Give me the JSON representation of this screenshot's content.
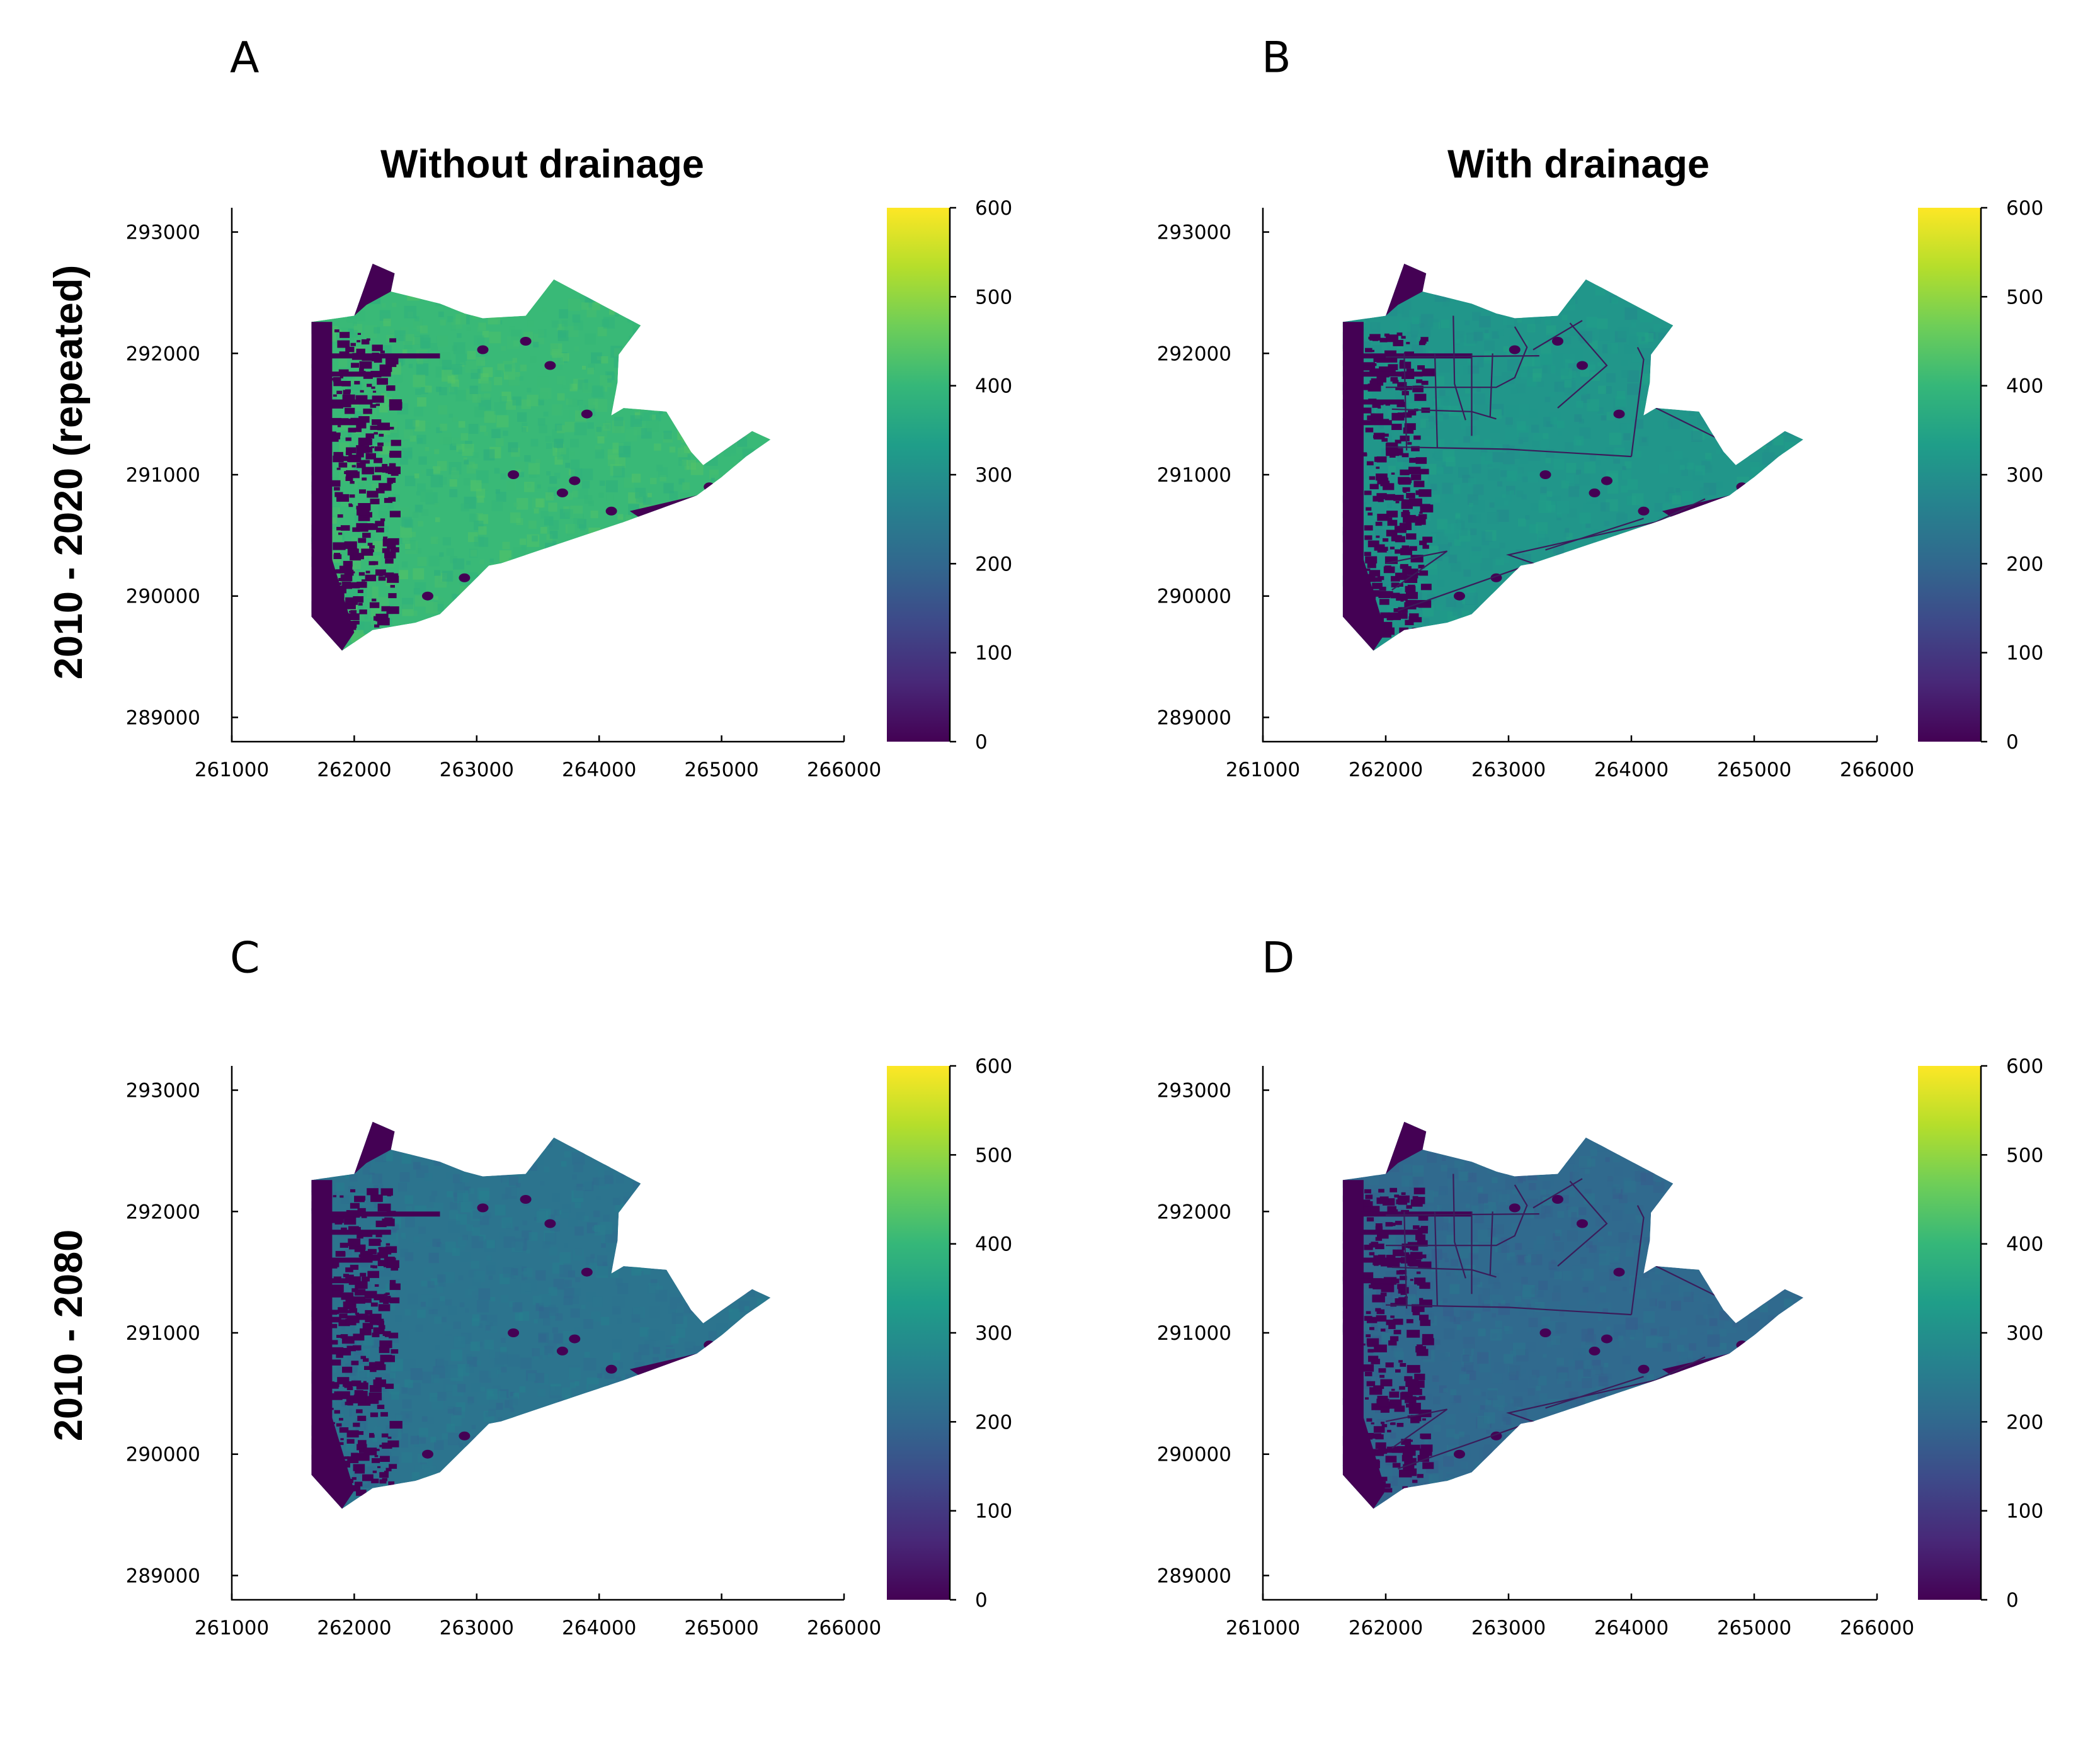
{
  "figure": {
    "column_titles": [
      "Without drainage",
      "With drainage"
    ],
    "row_labels": [
      "2010 -  2020 (repeated)",
      "2010 -  2080"
    ]
  },
  "colormap": {
    "name": "viridis",
    "stops": [
      "#440154",
      "#482878",
      "#3e4989",
      "#31688e",
      "#26828e",
      "#1f9e89",
      "#35b779",
      "#6ece58",
      "#b5de2b",
      "#fde725"
    ],
    "no_data_color": "#440154"
  },
  "chart_data": [
    {
      "type": "heatmap",
      "panel": "A",
      "title": "Without drainage",
      "row_label": "2010 -  2020 (repeated)",
      "xlim": [
        261000,
        266000
      ],
      "ylim": [
        288800,
        293200
      ],
      "xticks": [
        261000,
        262000,
        263000,
        264000,
        265000,
        266000
      ],
      "yticks": [
        289000,
        290000,
        291000,
        292000,
        293000
      ],
      "x_tick_labels": [
        "261000",
        "262000",
        "263000",
        "264000",
        "265000",
        "266000"
      ],
      "y_tick_labels": [
        "289000",
        "290000",
        "291000",
        "292000",
        "293000"
      ],
      "colorbar": {
        "min": 0,
        "max": 600,
        "ticks": [
          0,
          100,
          200,
          300,
          400,
          500,
          600
        ],
        "tick_labels": [
          "0",
          "100",
          "200",
          "300",
          "400",
          "500",
          "600"
        ]
      },
      "typical_value": 405,
      "drains_shown": false
    },
    {
      "type": "heatmap",
      "panel": "B",
      "title": "With drainage",
      "row_label": "",
      "xlim": [
        261000,
        266000
      ],
      "ylim": [
        288800,
        293200
      ],
      "xticks": [
        261000,
        262000,
        263000,
        264000,
        265000,
        266000
      ],
      "yticks": [
        289000,
        290000,
        291000,
        292000,
        293000
      ],
      "x_tick_labels": [
        "261000",
        "262000",
        "263000",
        "264000",
        "265000",
        "266000"
      ],
      "y_tick_labels": [
        "289000",
        "290000",
        "291000",
        "292000",
        "293000"
      ],
      "colorbar": {
        "min": 0,
        "max": 600,
        "ticks": [
          0,
          100,
          200,
          300,
          400,
          500,
          600
        ],
        "tick_labels": [
          "0",
          "100",
          "200",
          "300",
          "400",
          "500",
          "600"
        ]
      },
      "typical_value": 315,
      "drains_shown": true
    },
    {
      "type": "heatmap",
      "panel": "C",
      "title": "",
      "row_label": "2010 -  2080",
      "xlim": [
        261000,
        266000
      ],
      "ylim": [
        288800,
        293200
      ],
      "xticks": [
        261000,
        262000,
        263000,
        264000,
        265000,
        266000
      ],
      "yticks": [
        289000,
        290000,
        291000,
        292000,
        293000
      ],
      "x_tick_labels": [
        "261000",
        "262000",
        "263000",
        "264000",
        "265000",
        "266000"
      ],
      "y_tick_labels": [
        "289000",
        "290000",
        "291000",
        "292000",
        "293000"
      ],
      "colorbar": {
        "min": 0,
        "max": 600,
        "ticks": [
          0,
          100,
          200,
          300,
          400,
          500,
          600
        ],
        "tick_labels": [
          "0",
          "100",
          "200",
          "300",
          "400",
          "500",
          "600"
        ]
      },
      "typical_value": 230,
      "drains_shown": false
    },
    {
      "type": "heatmap",
      "panel": "D",
      "title": "",
      "row_label": "",
      "xlim": [
        261000,
        266000
      ],
      "ylim": [
        288800,
        293200
      ],
      "xticks": [
        261000,
        262000,
        263000,
        264000,
        265000,
        266000
      ],
      "yticks": [
        289000,
        290000,
        291000,
        292000,
        293000
      ],
      "x_tick_labels": [
        "261000",
        "262000",
        "263000",
        "264000",
        "265000",
        "266000"
      ],
      "y_tick_labels": [
        "289000",
        "290000",
        "291000",
        "292000",
        "293000"
      ],
      "colorbar": {
        "min": 0,
        "max": 600,
        "ticks": [
          0,
          100,
          200,
          300,
          400,
          500,
          600
        ],
        "tick_labels": [
          "0",
          "100",
          "200",
          "300",
          "400",
          "500",
          "600"
        ]
      },
      "typical_value": 205,
      "drains_shown": true
    }
  ],
  "region": {
    "outline": [
      [
        261650,
        289830
      ],
      [
        261900,
        289550
      ],
      [
        262150,
        289720
      ],
      [
        262500,
        289780
      ],
      [
        262700,
        289850
      ],
      [
        262950,
        290100
      ],
      [
        263100,
        290250
      ],
      [
        263200,
        290270
      ],
      [
        264200,
        290610
      ],
      [
        264800,
        290830
      ],
      [
        265000,
        290980
      ],
      [
        265200,
        291150
      ],
      [
        265400,
        291290
      ],
      [
        265250,
        291360
      ],
      [
        264850,
        291080
      ],
      [
        264750,
        291190
      ],
      [
        264550,
        291520
      ],
      [
        264200,
        291550
      ],
      [
        264100,
        291490
      ],
      [
        264150,
        291760
      ],
      [
        264160,
        291990
      ],
      [
        264340,
        292230
      ],
      [
        263630,
        292610
      ],
      [
        263400,
        292310
      ],
      [
        263050,
        292290
      ],
      [
        262900,
        292330
      ],
      [
        262700,
        292410
      ],
      [
        262300,
        292510
      ],
      [
        262330,
        292660
      ],
      [
        262150,
        292740
      ],
      [
        262000,
        292310
      ],
      [
        261650,
        292260
      ]
    ],
    "low_strips": [
      [
        [
          261650,
          289830
        ],
        [
          261900,
          289550
        ],
        [
          262000,
          289700
        ],
        [
          261820,
          290300
        ],
        [
          261820,
          292260
        ],
        [
          261650,
          292260
        ]
      ],
      [
        [
          262000,
          292310
        ],
        [
          262150,
          292740
        ],
        [
          262330,
          292660
        ],
        [
          262300,
          292510
        ],
        [
          262100,
          292400
        ]
      ],
      [
        [
          264250,
          290700
        ],
        [
          264800,
          290830
        ],
        [
          264650,
          290620
        ],
        [
          264400,
          290600
        ]
      ],
      [
        [
          264850,
          291080
        ],
        [
          265250,
          291360
        ],
        [
          265100,
          291300
        ],
        [
          264950,
          291150
        ]
      ]
    ],
    "drains": [
      [
        [
          262550,
          292310
        ],
        [
          262560,
          291750
        ],
        [
          262650,
          291450
        ]
      ],
      [
        [
          262000,
          291970
        ],
        [
          263250,
          291980
        ]
      ],
      [
        [
          262000,
          291720
        ],
        [
          262900,
          291720
        ],
        [
          263050,
          291800
        ],
        [
          263150,
          292050
        ],
        [
          263050,
          292220
        ]
      ],
      [
        [
          262050,
          291540
        ],
        [
          262700,
          291520
        ],
        [
          262900,
          291460
        ]
      ],
      [
        [
          262150,
          292000
        ],
        [
          262170,
          291200
        ]
      ],
      [
        [
          262400,
          292000
        ],
        [
          262420,
          291220
        ]
      ],
      [
        [
          262700,
          292000
        ],
        [
          262700,
          291320
        ]
      ],
      [
        [
          262870,
          292000
        ],
        [
          262850,
          291480
        ]
      ],
      [
        [
          262000,
          291230
        ],
        [
          263000,
          291210
        ],
        [
          264000,
          291150
        ]
      ],
      [
        [
          263500,
          292250
        ],
        [
          263800,
          291900
        ],
        [
          263400,
          291550
        ]
      ],
      [
        [
          263200,
          292030
        ],
        [
          263600,
          292270
        ]
      ],
      [
        [
          264000,
          291150
        ],
        [
          264100,
          291950
        ],
        [
          264050,
          292050
        ]
      ],
      [
        [
          264200,
          291550
        ],
        [
          264700,
          291300
        ]
      ],
      [
        [
          262050,
          290050
        ],
        [
          262500,
          290370
        ],
        [
          262000,
          290270
        ]
      ],
      [
        [
          262100,
          289880
        ],
        [
          263200,
          290270
        ],
        [
          263000,
          290340
        ],
        [
          264200,
          290610
        ],
        [
          264600,
          290800
        ]
      ],
      [
        [
          263300,
          290380
        ],
        [
          264100,
          290640
        ]
      ]
    ],
    "pits": [
      [
        263050,
        292030
      ],
      [
        263400,
        292100
      ],
      [
        263600,
        291900
      ],
      [
        264300,
        291600
      ],
      [
        263800,
        290950
      ],
      [
        264100,
        290700
      ],
      [
        263700,
        290850
      ],
      [
        264900,
        290900
      ],
      [
        262600,
        290000
      ],
      [
        262900,
        290150
      ],
      [
        263300,
        291000
      ],
      [
        263900,
        291500
      ]
    ]
  }
}
